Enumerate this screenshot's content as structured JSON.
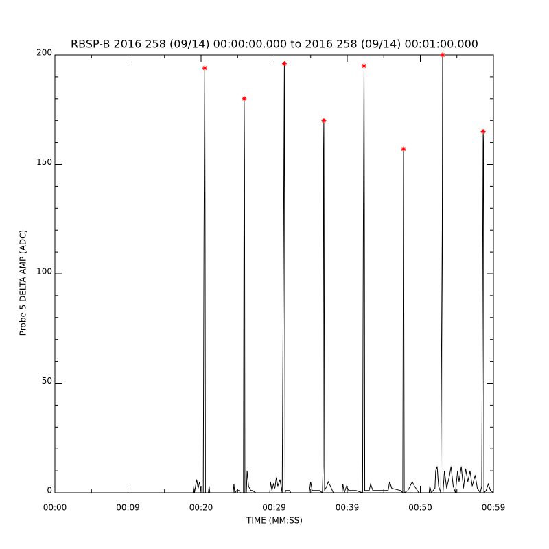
{
  "chart_data": {
    "type": "line",
    "title": "RBSP-B 2016 258 (09/14) 00:00:00.000 to 2016 258 (09/14) 00:01:00.000",
    "xlabel": "TIME (MM:SS)",
    "ylabel": "Probe 5 DELTA AMP (ADC)",
    "xlim": [
      0,
      60
    ],
    "ylim": [
      0,
      200
    ],
    "xticks": [
      {
        "value": 0,
        "label": "00:00"
      },
      {
        "value": 10,
        "label": "00:09"
      },
      {
        "value": 20,
        "label": "00:20"
      },
      {
        "value": 30,
        "label": "00:29"
      },
      {
        "value": 40,
        "label": "00:39"
      },
      {
        "value": 50,
        "label": "00:50"
      },
      {
        "value": 60,
        "label": "00:59"
      }
    ],
    "yticks": [
      0,
      50,
      100,
      150,
      200
    ],
    "xminorticks": [
      5,
      15,
      25,
      35,
      45,
      55
    ],
    "yminorticks": [
      10,
      20,
      30,
      40,
      60,
      70,
      80,
      90,
      110,
      120,
      130,
      140,
      160,
      170,
      180,
      190
    ],
    "series": [
      {
        "type": "line",
        "color": "#000000",
        "x": [
          0,
          18.9,
          19.0,
          19.1,
          19.4,
          19.6,
          19.8,
          20.0,
          20.3,
          20.4,
          20.5,
          20.55,
          20.6,
          21.0,
          21.1,
          21.2,
          24.4,
          24.5,
          24.6,
          24.9,
          25.2,
          25.4,
          25.8,
          25.85,
          25.9,
          25.95,
          26.0,
          26.2,
          26.3,
          26.5,
          26.8,
          27.0,
          27.5,
          29.4,
          29.5,
          29.7,
          29.9,
          30.1,
          30.3,
          30.5,
          30.8,
          31.1,
          31.3,
          31.4,
          31.5,
          31.6,
          32.1,
          32.3,
          34.8,
          35.0,
          35.2,
          36.2,
          36.6,
          36.7,
          36.75,
          36.8,
          36.85,
          36.9,
          37.2,
          37.4,
          37.7,
          38.1,
          39.3,
          39.4,
          39.6,
          39.9,
          40.2,
          41.2,
          42.1,
          42.2,
          42.3,
          42.35,
          42.4,
          43.0,
          43.2,
          43.5,
          45.6,
          45.8,
          46.1,
          47.3,
          47.6,
          47.7,
          47.75,
          47.8,
          48.3,
          48.6,
          48.9,
          49.2,
          49.8,
          51.2,
          51.3,
          51.5,
          52.0,
          52.1,
          52.3,
          52.5,
          52.8,
          53.0,
          53.05,
          53.1,
          53.3,
          53.6,
          54.0,
          54.2,
          54.5,
          54.8,
          55.1,
          55.3,
          55.6,
          55.9,
          56.2,
          56.5,
          56.8,
          57.1,
          57.5,
          57.8,
          58.2,
          58.4,
          58.5,
          58.6,
          58.65,
          58.7,
          59.0,
          59.3,
          59.6,
          60
        ],
        "values": [
          0,
          0,
          3,
          0,
          6,
          2,
          5,
          0,
          0,
          117,
          194,
          128,
          0,
          0,
          3,
          0,
          0,
          4,
          0,
          1,
          1,
          0,
          0,
          96,
          180,
          150,
          0,
          0,
          10,
          3,
          1,
          1,
          0,
          0,
          5,
          1,
          4,
          2,
          7,
          3,
          6,
          0,
          124,
          196,
          0,
          1,
          1,
          0,
          0,
          5,
          1,
          1,
          0,
          12,
          153,
          170,
          89,
          1,
          3,
          5,
          3,
          0,
          0,
          4,
          0,
          3,
          1,
          1,
          0,
          118,
          195,
          131,
          1,
          1,
          4,
          1,
          1,
          5,
          2,
          1,
          0,
          157,
          81,
          0,
          1,
          3,
          5,
          3,
          0,
          0,
          3,
          0,
          2,
          10,
          12,
          3,
          0,
          120,
          200,
          0,
          10,
          2,
          8,
          12,
          3,
          0,
          10,
          5,
          12,
          2,
          11,
          5,
          10,
          3,
          8,
          2,
          0,
          3,
          81,
          165,
          159,
          0,
          1,
          4,
          1,
          0
        ]
      },
      {
        "type": "scatter",
        "marker": "*",
        "color": "#ff0000",
        "x": [
          20.5,
          25.9,
          31.4,
          36.8,
          42.3,
          47.7,
          53.05,
          58.6
        ],
        "values": [
          194,
          180,
          196,
          170,
          195,
          157,
          200,
          165
        ]
      }
    ]
  }
}
